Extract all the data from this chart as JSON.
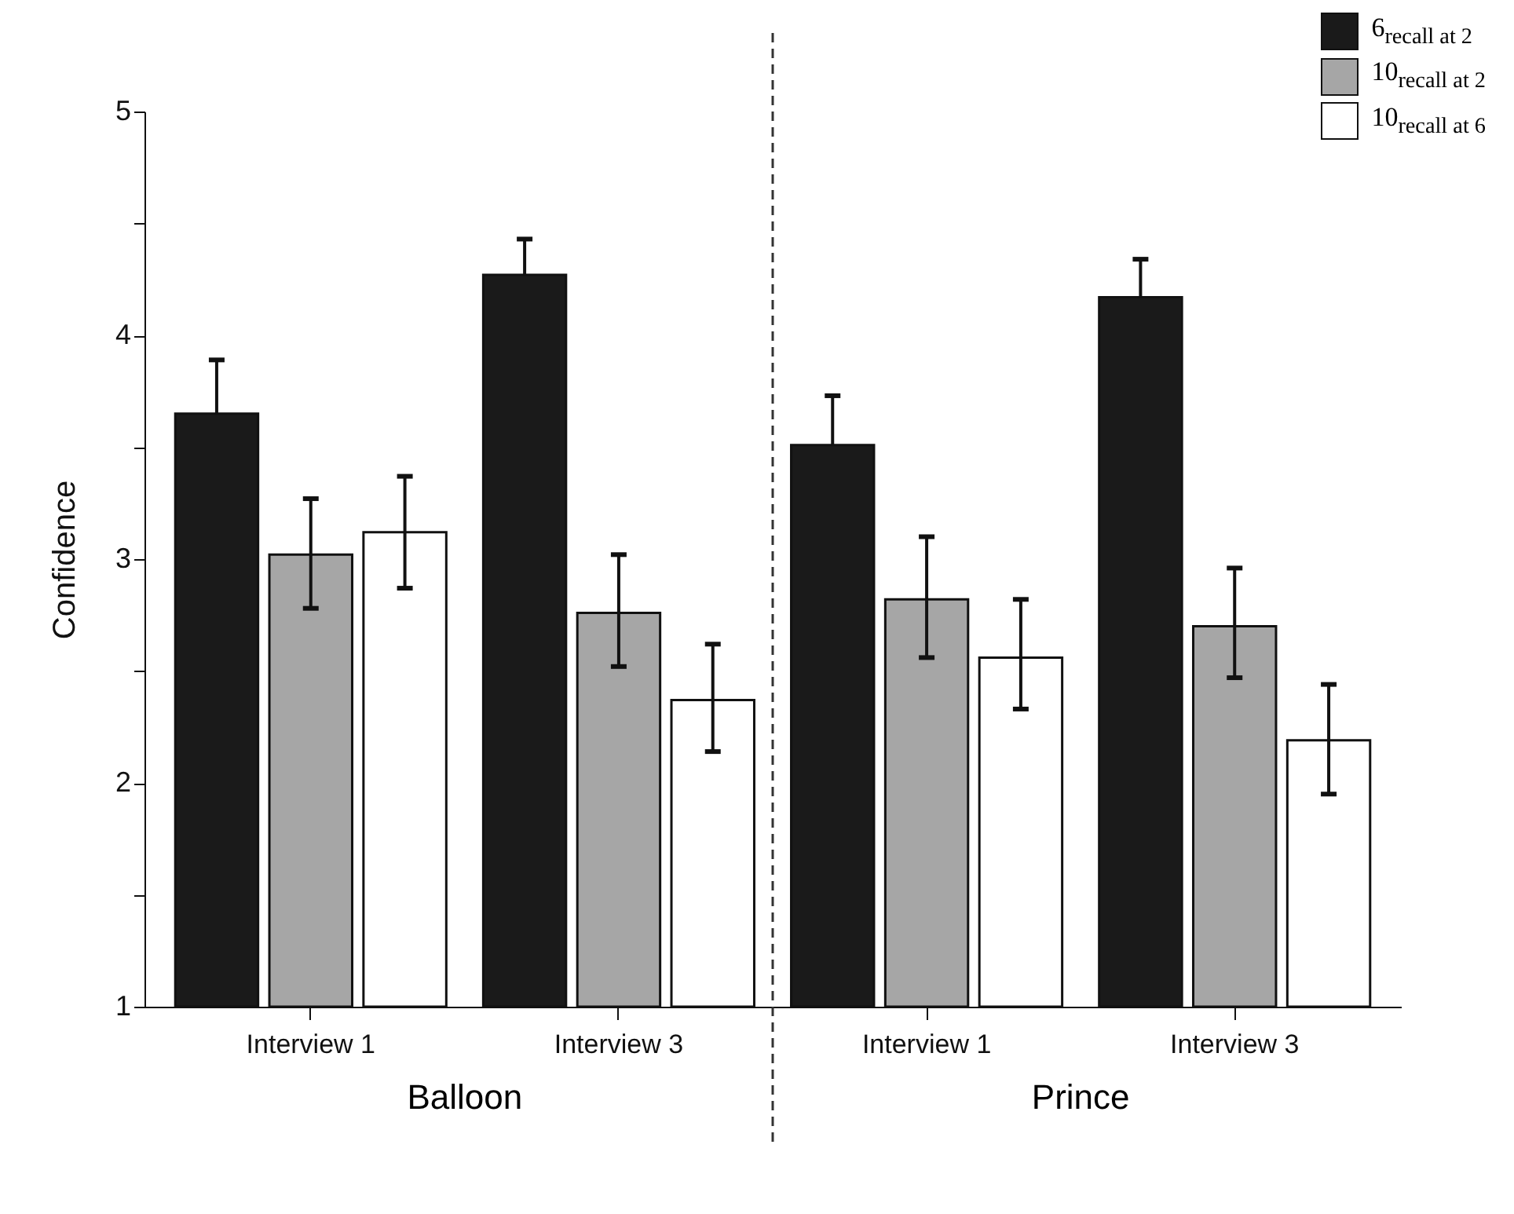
{
  "chart_data": {
    "type": "bar",
    "ylabel": "Confidence",
    "categories": [
      "Interview 1",
      "Interview 3",
      "Interview 1",
      "Interview 3"
    ],
    "series": [
      {
        "name": "6$_{recall at 2}$",
        "color": "#1a1a1a",
        "values": [
          3.65,
          4.27,
          3.51,
          4.17
        ],
        "errors": [
          [
            3.65,
            3.89
          ],
          [
            4.27,
            4.43
          ],
          [
            3.51,
            3.73
          ],
          [
            4.17,
            4.34
          ]
        ]
      },
      {
        "name": "10$_{recall at 2}$",
        "color": "#a6a6a6",
        "values": [
          3.02,
          2.76,
          2.82,
          2.7
        ],
        "errors": [
          [
            2.78,
            3.27
          ],
          [
            2.52,
            3.02
          ],
          [
            2.56,
            3.1
          ],
          [
            2.47,
            2.96
          ]
        ]
      },
      {
        "name": "10$_{recall at 6}$",
        "color": "#ffffff",
        "values": [
          3.12,
          2.37,
          2.56,
          2.19
        ],
        "errors": [
          [
            2.87,
            3.37
          ],
          [
            2.14,
            2.62
          ],
          [
            2.33,
            2.82
          ],
          [
            1.95,
            2.44
          ]
        ]
      }
    ],
    "ylim": [
      1,
      5
    ],
    "yticks": [
      1,
      {
        "value": 1.5,
        "label": null
      },
      2,
      {
        "value": 2.5,
        "label": null
      },
      3,
      {
        "value": 3.5,
        "label": null
      },
      4,
      {
        "value": 4.5,
        "label": null
      },
      5
    ],
    "annotations": [
      "Balloon",
      "Prince"
    ],
    "legend": "top right",
    "grid": false
  }
}
